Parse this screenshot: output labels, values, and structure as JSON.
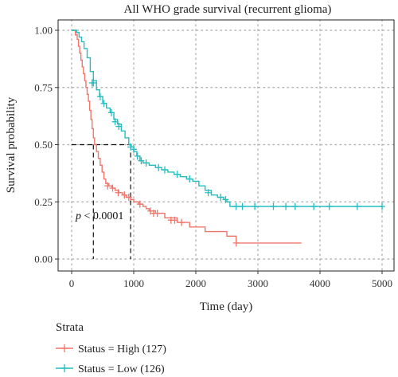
{
  "chart_data": {
    "type": "line",
    "title": "All WHO grade survival (recurrent glioma)",
    "xlabel": "Time (day)",
    "ylabel": "Survival probability",
    "xlim": [
      0,
      5000
    ],
    "ylim": [
      0,
      1
    ],
    "x_ticks": [
      "0",
      "1000",
      "2000",
      "3000",
      "4000",
      "5000"
    ],
    "y_ticks": [
      "0.00",
      "0.25",
      "0.50",
      "0.75",
      "1.00"
    ],
    "grid": true,
    "annotation": {
      "p_letter": "p",
      "p_rest": " < 0.0001"
    },
    "median_lines": {
      "y": 0.5,
      "x": [
        350,
        950
      ]
    },
    "legend": {
      "title": "Strata",
      "placement": "bottom-left"
    },
    "series": [
      {
        "name": "Status = High (127)",
        "color": "#f0756b",
        "steps": [
          [
            0,
            1.0
          ],
          [
            60,
            0.98
          ],
          [
            90,
            0.96
          ],
          [
            110,
            0.93
          ],
          [
            130,
            0.9
          ],
          [
            150,
            0.87
          ],
          [
            170,
            0.84
          ],
          [
            190,
            0.81
          ],
          [
            210,
            0.78
          ],
          [
            230,
            0.75
          ],
          [
            250,
            0.72
          ],
          [
            270,
            0.69
          ],
          [
            290,
            0.65
          ],
          [
            310,
            0.61
          ],
          [
            330,
            0.57
          ],
          [
            350,
            0.53
          ],
          [
            370,
            0.5
          ],
          [
            400,
            0.47
          ],
          [
            430,
            0.44
          ],
          [
            460,
            0.41
          ],
          [
            490,
            0.38
          ],
          [
            520,
            0.35
          ],
          [
            550,
            0.33
          ],
          [
            600,
            0.32
          ],
          [
            650,
            0.31
          ],
          [
            700,
            0.3
          ],
          [
            760,
            0.29
          ],
          [
            820,
            0.28
          ],
          [
            880,
            0.27
          ],
          [
            950,
            0.26
          ],
          [
            1000,
            0.25
          ],
          [
            1080,
            0.24
          ],
          [
            1150,
            0.23
          ],
          [
            1200,
            0.22
          ],
          [
            1250,
            0.21
          ],
          [
            1350,
            0.2
          ],
          [
            1500,
            0.18
          ],
          [
            1700,
            0.16
          ],
          [
            1900,
            0.14
          ],
          [
            2150,
            0.12
          ],
          [
            2500,
            0.1
          ],
          [
            2650,
            0.07
          ],
          [
            3700,
            0.07
          ]
        ],
        "censored": [
          [
            580,
            0.32
          ],
          [
            660,
            0.31
          ],
          [
            750,
            0.29
          ],
          [
            850,
            0.28
          ],
          [
            920,
            0.27
          ],
          [
            1100,
            0.24
          ],
          [
            1270,
            0.21
          ],
          [
            1320,
            0.2
          ],
          [
            1380,
            0.2
          ],
          [
            1600,
            0.17
          ],
          [
            1660,
            0.17
          ],
          [
            1770,
            0.16
          ],
          [
            2650,
            0.07
          ]
        ]
      },
      {
        "name": "Status = Low (126)",
        "color": "#24bdc0",
        "steps": [
          [
            0,
            1.0
          ],
          [
            80,
            0.99
          ],
          [
            120,
            0.97
          ],
          [
            160,
            0.95
          ],
          [
            200,
            0.92
          ],
          [
            250,
            0.88
          ],
          [
            300,
            0.82
          ],
          [
            350,
            0.78
          ],
          [
            400,
            0.74
          ],
          [
            450,
            0.71
          ],
          [
            500,
            0.68
          ],
          [
            560,
            0.66
          ],
          [
            620,
            0.64
          ],
          [
            680,
            0.61
          ],
          [
            740,
            0.59
          ],
          [
            800,
            0.56
          ],
          [
            860,
            0.53
          ],
          [
            920,
            0.5
          ],
          [
            960,
            0.49
          ],
          [
            1000,
            0.47
          ],
          [
            1050,
            0.45
          ],
          [
            1100,
            0.43
          ],
          [
            1150,
            0.42
          ],
          [
            1250,
            0.41
          ],
          [
            1350,
            0.4
          ],
          [
            1450,
            0.39
          ],
          [
            1550,
            0.38
          ],
          [
            1650,
            0.37
          ],
          [
            1750,
            0.36
          ],
          [
            1850,
            0.35
          ],
          [
            1950,
            0.34
          ],
          [
            2050,
            0.32
          ],
          [
            2150,
            0.3
          ],
          [
            2250,
            0.28
          ],
          [
            2350,
            0.27
          ],
          [
            2450,
            0.26
          ],
          [
            2500,
            0.25
          ],
          [
            2550,
            0.23
          ],
          [
            5000,
            0.23
          ]
        ],
        "censored": [
          [
            330,
            0.77
          ],
          [
            350,
            0.77
          ],
          [
            460,
            0.71
          ],
          [
            520,
            0.68
          ],
          [
            640,
            0.64
          ],
          [
            700,
            0.6
          ],
          [
            760,
            0.58
          ],
          [
            950,
            0.49
          ],
          [
            1000,
            0.48
          ],
          [
            1060,
            0.45
          ],
          [
            1120,
            0.43
          ],
          [
            1200,
            0.42
          ],
          [
            1400,
            0.4
          ],
          [
            1500,
            0.39
          ],
          [
            1700,
            0.37
          ],
          [
            1900,
            0.35
          ],
          [
            2200,
            0.29
          ],
          [
            2400,
            0.27
          ],
          [
            2480,
            0.26
          ],
          [
            2650,
            0.23
          ],
          [
            2750,
            0.23
          ],
          [
            2950,
            0.23
          ],
          [
            3250,
            0.23
          ],
          [
            3450,
            0.23
          ],
          [
            3600,
            0.23
          ],
          [
            3900,
            0.23
          ],
          [
            4150,
            0.23
          ],
          [
            4600,
            0.23
          ],
          [
            5000,
            0.23
          ]
        ]
      }
    ]
  }
}
